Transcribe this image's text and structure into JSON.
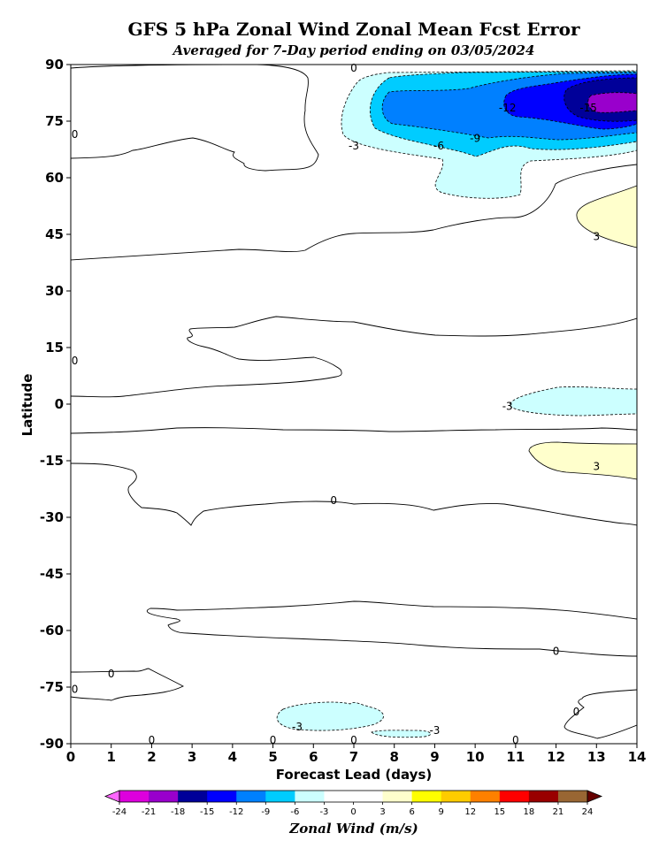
{
  "chart_data": {
    "type": "contour",
    "title": "GFS 5 hPa Zonal Wind Zonal Mean Fcst Error",
    "subtitle": "Averaged for 7-Day period ending on 03/05/2024",
    "xlabel": "Forecast Lead (days)",
    "ylabel": "Latitude",
    "xlim": [
      0,
      14
    ],
    "ylim": [
      -90,
      90
    ],
    "xticks": [
      "0",
      "1",
      "2",
      "3",
      "4",
      "5",
      "6",
      "7",
      "8",
      "9",
      "10",
      "11",
      "12",
      "13",
      "14"
    ],
    "yticks": [
      "90",
      "75",
      "60",
      "45",
      "30",
      "15",
      "0",
      "-15",
      "-30",
      "-45",
      "-60",
      "-75",
      "-90"
    ],
    "colorbar": {
      "label": "Zonal Wind (m/s)",
      "ticks": [
        "-24",
        "-21",
        "-18",
        "-15",
        "-12",
        "-9",
        "-6",
        "-3",
        "0",
        "3",
        "6",
        "9",
        "12",
        "15",
        "18",
        "21",
        "24"
      ],
      "colors": [
        "#dd00dd",
        "#9900cc",
        "#000099",
        "#0000ff",
        "#0080ff",
        "#00ccff",
        "#ccffff",
        "#ffffff",
        "#ffffff",
        "#ffffcc",
        "#ffff00",
        "#ffcc00",
        "#ff8000",
        "#ff0000",
        "#990000",
        "#996633"
      ],
      "under_color": "#ff66ff",
      "over_color": "#660000"
    },
    "contour_labels": [
      {
        "text": "0",
        "x": 7.0,
        "y": 90
      },
      {
        "text": "0",
        "x": 0.1,
        "y": 71
      },
      {
        "text": "-3",
        "x": 7.0,
        "y": 68
      },
      {
        "text": "-6",
        "x": 9.1,
        "y": 68
      },
      {
        "text": "-9",
        "x": 10.0,
        "y": 70
      },
      {
        "text": "-12",
        "x": 10.8,
        "y": 78
      },
      {
        "text": "-15",
        "x": 12.8,
        "y": 78
      },
      {
        "text": "3",
        "x": 13.0,
        "y": 44
      },
      {
        "text": "0",
        "x": 0.1,
        "y": 11
      },
      {
        "text": "-3",
        "x": 10.8,
        "y": -1
      },
      {
        "text": "3",
        "x": 13.0,
        "y": -17
      },
      {
        "text": "0",
        "x": 6.5,
        "y": -26
      },
      {
        "text": "0",
        "x": 12.0,
        "y": -66
      },
      {
        "text": "0",
        "x": 1.0,
        "y": -72
      },
      {
        "text": "0",
        "x": 0.1,
        "y": -76
      },
      {
        "text": "0",
        "x": 12.5,
        "y": -82
      },
      {
        "text": "-3",
        "x": 5.6,
        "y": -86
      },
      {
        "text": "-3",
        "x": 9.0,
        "y": -87
      },
      {
        "text": "0",
        "x": 2.0,
        "y": -90
      },
      {
        "text": "0",
        "x": 5.0,
        "y": -90
      },
      {
        "text": "0",
        "x": 7.0,
        "y": -90
      },
      {
        "text": "0",
        "x": 11.0,
        "y": -90
      }
    ]
  }
}
